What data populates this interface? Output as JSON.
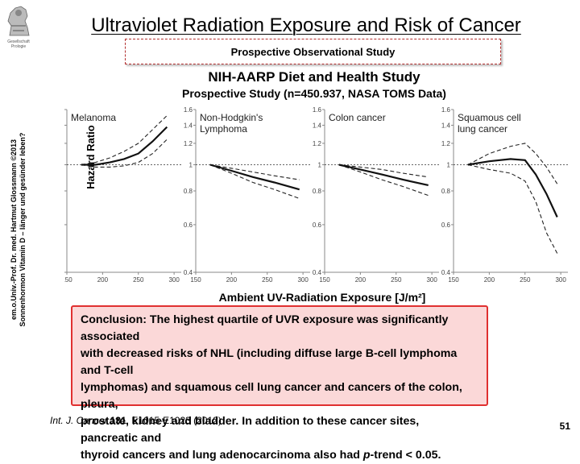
{
  "logo_caption": "Gesellschaft Prologie",
  "title": "Ultraviolet Radiation Exposure and Risk of Cancer",
  "subtitle": "Prospective Observational Study",
  "study_name": "NIH-AARP Diet and Health Study",
  "study_desc": "Prospective Study (n=450.937, NASA TOMS Data)",
  "credit_line1": "em.o.Univ.-Prof. Dr. med. Hartmut Glossmann ©2013",
  "credit_line2": "Sonnenhormon Vitamin D – länger und gesünder leben?",
  "chart_data": {
    "type": "line",
    "ylabel": "Hazard Ratio",
    "xlabel": "Ambient UV-Radiation Exposure [J/m²]",
    "xlim": [
      150,
      310
    ],
    "ylim": [
      0.4,
      1.6
    ],
    "yscale": "log",
    "xticks": [
      150,
      200,
      250,
      300
    ],
    "yticks": [
      0.4,
      0.6,
      0.8,
      1,
      1.2,
      1.4,
      1.6
    ],
    "ytick_labels": [
      "0.4",
      "0.6",
      "0.8",
      "1",
      "1.2",
      "1.4",
      "1.6"
    ],
    "reference_line": 1,
    "panels": [
      {
        "label": "Melanoma",
        "estimate": {
          "x": [
            170,
            190,
            210,
            230,
            250,
            270,
            290
          ],
          "y": [
            1.0,
            1.0,
            1.02,
            1.05,
            1.1,
            1.22,
            1.38
          ]
        },
        "upper": {
          "x": [
            170,
            190,
            210,
            230,
            250,
            270,
            290
          ],
          "y": [
            1.0,
            1.02,
            1.06,
            1.12,
            1.2,
            1.35,
            1.52
          ]
        },
        "lower": {
          "x": [
            170,
            190,
            210,
            230,
            250,
            270,
            290
          ],
          "y": [
            1.0,
            0.98,
            0.98,
            0.99,
            1.02,
            1.1,
            1.24
          ]
        }
      },
      {
        "label": "Non-Hodgkin's\nLymphoma",
        "estimate": {
          "x": [
            170,
            200,
            230,
            260,
            295
          ],
          "y": [
            1.0,
            0.95,
            0.9,
            0.86,
            0.81
          ]
        },
        "upper": {
          "x": [
            170,
            200,
            230,
            260,
            295
          ],
          "y": [
            1.0,
            0.97,
            0.94,
            0.91,
            0.88
          ]
        },
        "lower": {
          "x": [
            170,
            200,
            230,
            260,
            295
          ],
          "y": [
            1.0,
            0.93,
            0.86,
            0.81,
            0.75
          ]
        }
      },
      {
        "label": "Colon cancer",
        "estimate": {
          "x": [
            170,
            200,
            230,
            260,
            295
          ],
          "y": [
            1.0,
            0.96,
            0.92,
            0.88,
            0.84
          ]
        },
        "upper": {
          "x": [
            170,
            200,
            230,
            260,
            295
          ],
          "y": [
            1.0,
            0.98,
            0.96,
            0.93,
            0.9
          ]
        },
        "lower": {
          "x": [
            170,
            200,
            230,
            260,
            295
          ],
          "y": [
            1.0,
            0.94,
            0.88,
            0.83,
            0.77
          ]
        }
      },
      {
        "label": "Squamous cell\nlung cancer",
        "estimate": {
          "x": [
            170,
            200,
            230,
            250,
            265,
            280,
            295
          ],
          "y": [
            1.0,
            1.03,
            1.05,
            1.04,
            0.92,
            0.78,
            0.64
          ]
        },
        "upper": {
          "x": [
            170,
            200,
            230,
            250,
            265,
            280,
            295
          ],
          "y": [
            1.0,
            1.1,
            1.17,
            1.2,
            1.1,
            0.98,
            0.85
          ]
        },
        "lower": {
          "x": [
            170,
            200,
            230,
            250,
            265,
            280,
            295
          ],
          "y": [
            1.0,
            0.96,
            0.93,
            0.87,
            0.73,
            0.56,
            0.47
          ]
        }
      }
    ]
  },
  "conclusion": {
    "line1": "Conclusion: The highest quartile of UVR exposure was significantly associated",
    "line2": "with decreased risks of NHL (including diffuse large B-cell lymphoma and T-cell",
    "line3": "lymphomas) and squamous cell lung cancer and cancers of the colon, pleura,",
    "line4": "prostate, kidney and bladder. In addition to these cancer sites, pancreatic and",
    "line5_pre": "thyroid cancers and lung adenocarcinoma also had ",
    "line5_italic": "p",
    "line5_post": "-trend < 0.05."
  },
  "citation": {
    "journal": "Int. J. Cancer",
    "volume": "131",
    "pages": ", E1015-E1023 (2012)"
  },
  "page_number": "51"
}
